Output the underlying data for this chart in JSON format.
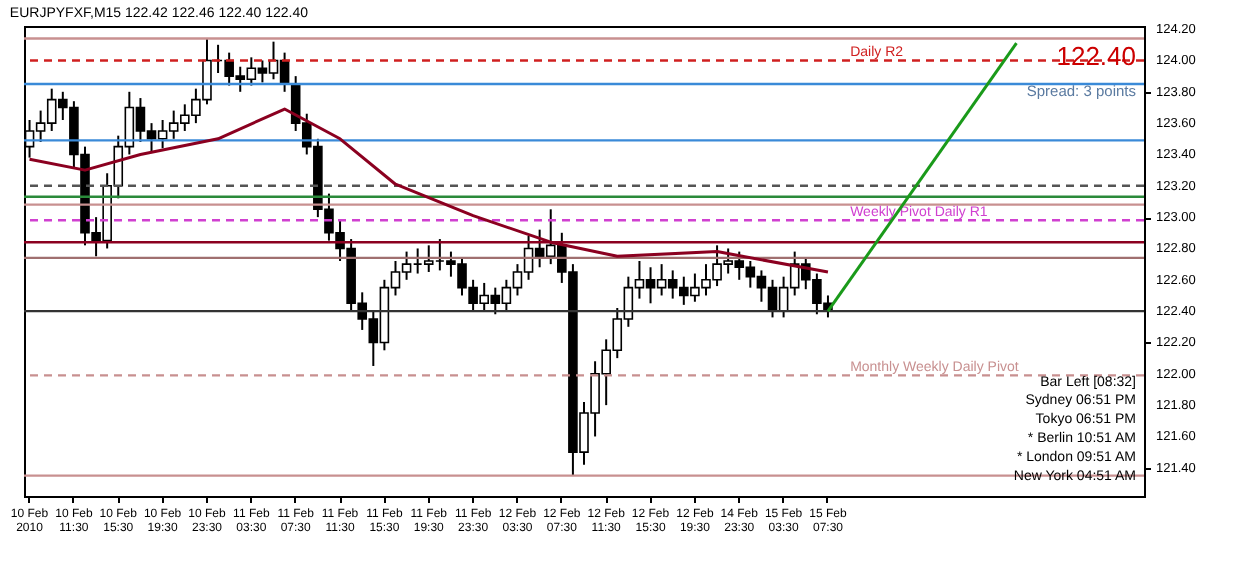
{
  "chart_data": {
    "type": "candlestick",
    "title": "EURJPYFXF,M15  122.42 122.46 122.40 122.40",
    "categories": [
      "10 Feb 2010",
      null,
      null,
      null,
      "10 Feb 11:30",
      null,
      null,
      null,
      "10 Feb 15:30",
      null,
      null,
      null,
      "10 Feb 19:30",
      null,
      null,
      null,
      "10 Feb 23:30",
      null,
      null,
      null,
      "11 Feb 03:30",
      null,
      null,
      null,
      "11 Feb 07:30",
      null,
      null,
      null,
      "11 Feb 11:30",
      null,
      null,
      null,
      "11 Feb 15:30",
      null,
      null,
      null,
      "11 Feb 19:30",
      null,
      null,
      null,
      "11 Feb 23:30",
      null,
      null,
      null,
      "12 Feb 03:30",
      null,
      null,
      null,
      "12 Feb 07:30",
      null,
      null,
      null,
      "12 Feb 11:30",
      null,
      null,
      null,
      "12 Feb 15:30",
      null,
      null,
      null,
      "12 Feb 19:30",
      null,
      null,
      null,
      "14 Feb 23:30",
      null,
      null,
      null,
      "15 Feb 03:30",
      null,
      null,
      null,
      "15 Feb 07:30",
      null,
      null,
      null,
      null,
      null,
      null,
      null,
      null,
      null,
      null,
      null,
      null,
      null,
      null,
      null,
      null,
      null,
      null,
      null,
      null,
      null,
      null,
      null,
      null,
      null,
      null,
      null,
      null
    ],
    "ohlc": [
      [
        123.45,
        123.62,
        123.38,
        123.55
      ],
      [
        123.55,
        123.68,
        123.48,
        123.6
      ],
      [
        123.6,
        123.82,
        123.55,
        123.75
      ],
      [
        123.75,
        123.8,
        123.62,
        123.7
      ],
      [
        123.7,
        123.74,
        123.32,
        123.4
      ],
      [
        123.4,
        123.45,
        122.82,
        122.9
      ],
      [
        122.9,
        123.0,
        122.75,
        122.85
      ],
      [
        122.85,
        123.28,
        122.8,
        123.2
      ],
      [
        123.2,
        123.52,
        123.12,
        123.45
      ],
      [
        123.45,
        123.8,
        123.4,
        123.7
      ],
      [
        123.7,
        123.76,
        123.48,
        123.55
      ],
      [
        123.55,
        123.6,
        123.42,
        123.5
      ],
      [
        123.5,
        123.62,
        123.44,
        123.55
      ],
      [
        123.55,
        123.68,
        123.5,
        123.6
      ],
      [
        123.6,
        123.72,
        123.55,
        123.65
      ],
      [
        123.65,
        123.82,
        123.6,
        123.75
      ],
      [
        123.75,
        124.14,
        123.72,
        124.0
      ],
      [
        124.0,
        124.1,
        123.92,
        124.0
      ],
      [
        124.0,
        124.05,
        123.84,
        123.9
      ],
      [
        123.9,
        123.96,
        123.8,
        123.88
      ],
      [
        123.88,
        124.02,
        123.84,
        123.95
      ],
      [
        123.95,
        124.0,
        123.86,
        123.92
      ],
      [
        123.92,
        124.12,
        123.88,
        124.0
      ],
      [
        124.0,
        124.05,
        123.8,
        123.85
      ],
      [
        123.85,
        123.9,
        123.55,
        123.6
      ],
      [
        123.6,
        123.66,
        123.4,
        123.45
      ],
      [
        123.45,
        123.5,
        123.0,
        123.05
      ],
      [
        123.05,
        123.15,
        122.85,
        122.9
      ],
      [
        122.9,
        122.98,
        122.72,
        122.8
      ],
      [
        122.8,
        122.86,
        122.4,
        122.45
      ],
      [
        122.45,
        122.52,
        122.28,
        122.35
      ],
      [
        122.35,
        122.4,
        122.05,
        122.2
      ],
      [
        122.2,
        122.6,
        122.15,
        122.55
      ],
      [
        122.55,
        122.72,
        122.5,
        122.65
      ],
      [
        122.65,
        122.78,
        122.6,
        122.7
      ],
      [
        122.7,
        122.8,
        122.64,
        122.7
      ],
      [
        122.7,
        122.82,
        122.65,
        122.72
      ],
      [
        122.72,
        122.86,
        122.66,
        122.72
      ],
      [
        122.72,
        122.78,
        122.62,
        122.7
      ],
      [
        122.7,
        122.74,
        122.5,
        122.55
      ],
      [
        122.55,
        122.6,
        122.4,
        122.45
      ],
      [
        122.45,
        122.58,
        122.4,
        122.5
      ],
      [
        122.5,
        122.55,
        122.38,
        122.45
      ],
      [
        122.45,
        122.6,
        122.4,
        122.55
      ],
      [
        122.55,
        122.7,
        122.5,
        122.65
      ],
      [
        122.65,
        122.88,
        122.6,
        122.8
      ],
      [
        122.8,
        122.92,
        122.68,
        122.75
      ],
      [
        122.75,
        123.05,
        122.7,
        122.82
      ],
      [
        122.82,
        122.9,
        122.58,
        122.65
      ],
      [
        122.65,
        122.7,
        121.35,
        121.5
      ],
      [
        121.5,
        121.82,
        121.42,
        121.75
      ],
      [
        121.75,
        122.08,
        121.6,
        122.0
      ],
      [
        122.0,
        122.22,
        121.8,
        122.15
      ],
      [
        122.15,
        122.42,
        122.1,
        122.35
      ],
      [
        122.35,
        122.62,
        122.3,
        122.55
      ],
      [
        122.55,
        122.72,
        122.48,
        122.6
      ],
      [
        122.6,
        122.68,
        122.45,
        122.55
      ],
      [
        122.55,
        122.7,
        122.5,
        122.6
      ],
      [
        122.6,
        122.66,
        122.48,
        122.55
      ],
      [
        122.55,
        122.62,
        122.44,
        122.5
      ],
      [
        122.5,
        122.64,
        122.46,
        122.55
      ],
      [
        122.55,
        122.7,
        122.5,
        122.6
      ],
      [
        122.6,
        122.82,
        122.56,
        122.7
      ],
      [
        122.7,
        122.8,
        122.64,
        122.72
      ],
      [
        122.72,
        122.78,
        122.6,
        122.68
      ],
      [
        122.68,
        122.72,
        122.55,
        122.62
      ],
      [
        122.62,
        122.66,
        122.46,
        122.55
      ],
      [
        122.55,
        122.6,
        122.36,
        122.4
      ],
      [
        122.4,
        122.62,
        122.36,
        122.55
      ],
      [
        122.55,
        122.78,
        122.5,
        122.7
      ],
      [
        122.7,
        122.74,
        122.54,
        122.6
      ],
      [
        122.6,
        122.64,
        122.38,
        122.45
      ],
      [
        122.45,
        122.5,
        122.36,
        122.4
      ],
      null,
      null,
      null,
      null,
      null,
      null,
      null,
      null,
      null,
      null,
      null,
      null,
      null,
      null,
      null,
      null,
      null,
      null,
      null,
      null,
      null,
      null,
      null,
      null,
      null,
      null,
      null,
      null
    ],
    "color": "#000000",
    "series": [
      {
        "type": "line",
        "color": "#8b0020",
        "values": [
          123.37,
          null,
          null,
          null,
          null,
          123.3,
          null,
          null,
          null,
          null,
          123.4,
          null,
          null,
          null,
          null,
          null,
          null,
          123.5,
          null,
          null,
          null,
          null,
          null,
          123.69,
          null,
          null,
          null,
          null,
          123.5,
          null,
          null,
          null,
          null,
          123.21,
          null,
          null,
          null,
          null,
          null,
          null,
          123.01,
          null,
          null,
          null,
          null,
          null,
          null,
          122.84,
          null,
          null,
          null,
          null,
          null,
          122.75,
          null,
          null,
          null,
          null,
          null,
          null,
          null,
          null,
          122.78,
          null,
          null,
          null,
          null,
          null,
          null,
          null,
          null,
          null,
          122.65,
          null,
          null,
          null,
          null,
          null,
          null,
          null,
          null,
          null,
          null,
          null,
          null,
          null,
          null,
          null,
          null,
          null,
          null,
          null,
          null,
          null,
          null,
          null,
          null,
          null,
          null,
          null,
          null
        ]
      },
      {
        "type": "line",
        "color": "#1a9a1a",
        "values": [
          null,
          null,
          null,
          null,
          null,
          null,
          null,
          null,
          null,
          null,
          null,
          null,
          null,
          null,
          null,
          null,
          null,
          null,
          null,
          null,
          null,
          null,
          null,
          null,
          null,
          null,
          null,
          null,
          null,
          null,
          null,
          null,
          null,
          null,
          null,
          null,
          null,
          null,
          null,
          null,
          null,
          null,
          null,
          null,
          null,
          null,
          null,
          null,
          null,
          null,
          null,
          null,
          null,
          null,
          null,
          null,
          null,
          null,
          null,
          null,
          null,
          null,
          null,
          null,
          null,
          null,
          null,
          null,
          null,
          null,
          null,
          null,
          122.4,
          null,
          null,
          null,
          null,
          null,
          null,
          null,
          null,
          null,
          null,
          null,
          null,
          null,
          null,
          null,
          null,
          124.11,
          null,
          null,
          null,
          null,
          null,
          null,
          null,
          null,
          null,
          null,
          null
        ]
      }
    ],
    "ylim": [
      121.22,
      124.22
    ],
    "yticks": [
      {
        "value": 121.4,
        "label": "121.40"
      },
      {
        "value": 121.6,
        "label": "121.60"
      },
      {
        "value": 121.8,
        "label": "121.80"
      },
      {
        "value": 122.0,
        "label": "122.00"
      },
      {
        "value": 122.2,
        "label": "122.20"
      },
      {
        "value": 122.4,
        "label": "122.40"
      },
      {
        "value": 122.6,
        "label": "122.60"
      },
      {
        "value": 122.8,
        "label": "122.80"
      },
      {
        "value": 123.0,
        "label": "123.00"
      },
      {
        "value": 123.2,
        "label": "123.20"
      },
      {
        "value": 123.4,
        "label": "123.40"
      },
      {
        "value": 123.6,
        "label": "123.60"
      },
      {
        "value": 123.8,
        "label": "123.80"
      },
      {
        "value": 124.0,
        "label": "124.00"
      },
      {
        "value": 124.2,
        "label": "124.20"
      }
    ],
    "ref_lines": [
      {
        "axis": "y",
        "value": 124.14,
        "color": "#c89090",
        "line_style": "solid"
      },
      {
        "axis": "y",
        "value": 124.0,
        "label": "Daily R2",
        "color": "#d02020",
        "line_style": "dashed"
      },
      {
        "axis": "y",
        "value": 123.85,
        "color": "#3a8ad8",
        "line_style": "solid"
      },
      {
        "axis": "y",
        "value": 123.49,
        "color": "#3a8ad8",
        "line_style": "solid"
      },
      {
        "axis": "y",
        "value": 123.2,
        "color": "#555555",
        "line_style": "dashed"
      },
      {
        "axis": "y",
        "value": 123.13,
        "color": "#2a8a3a",
        "line_style": "solid"
      },
      {
        "axis": "y",
        "value": 123.08,
        "color": "#c89090",
        "line_style": "solid"
      },
      {
        "axis": "y",
        "value": 122.98,
        "label": "Weekly Pivot Daily R1",
        "color": "#d040d0",
        "line_style": "dashed"
      },
      {
        "axis": "y",
        "value": 122.84,
        "color": "#8b0020",
        "line_style": "solid"
      },
      {
        "axis": "y",
        "value": 122.74,
        "color": "#a07070",
        "line_style": "solid"
      },
      {
        "axis": "y",
        "value": 122.4,
        "color": "#333333",
        "line_style": "solid"
      },
      {
        "axis": "y",
        "value": 121.99,
        "label": "Monthly Weekly Daily Pivot",
        "color": "#c89090",
        "line_style": "dashed"
      },
      {
        "axis": "y",
        "value": 121.35,
        "color": "#c89090",
        "line_style": "solid"
      }
    ],
    "annotations": [
      "122.40",
      "Spread: 3 points",
      "Bar Left  [08:32]",
      "Sydney  06:51 PM",
      "Tokyo  06:51 PM",
      "* Berlin  10:51 AM",
      "* London  09:51 AM",
      "New York  04:51 AM"
    ],
    "grid": false
  }
}
